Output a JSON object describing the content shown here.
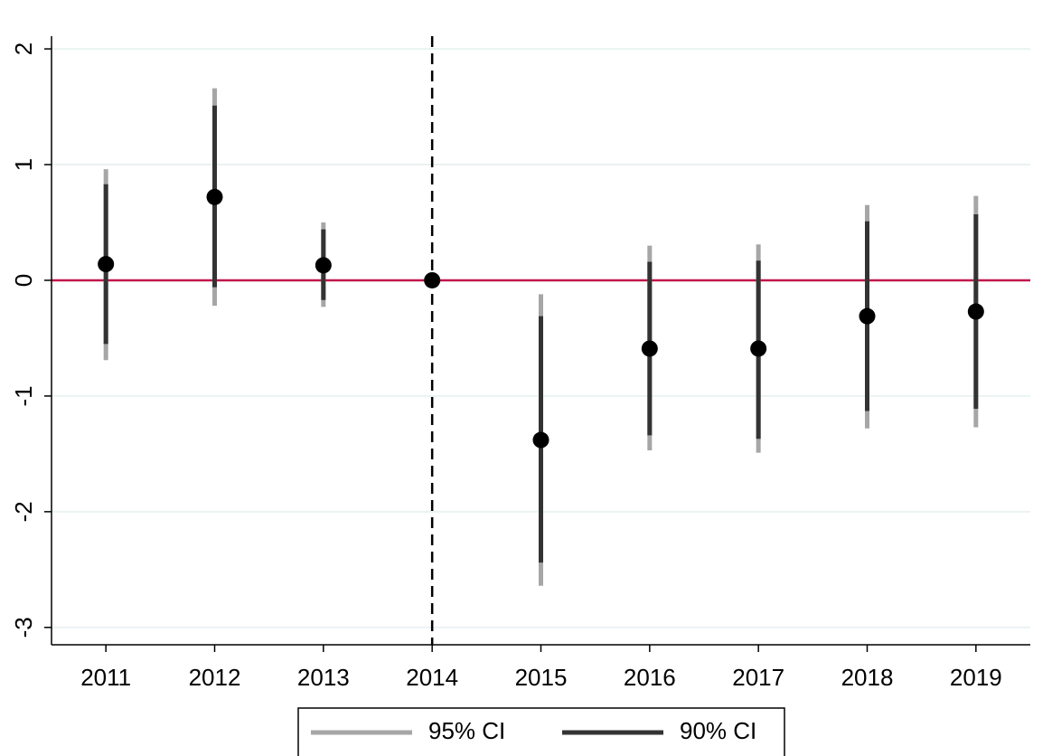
{
  "chart_data": {
    "type": "coefplot",
    "categories": [
      "2011",
      "2012",
      "2013",
      "2014",
      "2015",
      "2016",
      "2017",
      "2018",
      "2019"
    ],
    "values": [
      0.14,
      0.72,
      0.13,
      0,
      -1.38,
      -0.59,
      -0.59,
      -0.31,
      -0.27
    ],
    "point_color": "#000000",
    "series": [
      {
        "name": "95% CI",
        "color": "#a6a6a6",
        "lower": [
          -0.69,
          -0.22,
          -0.23,
          null,
          -2.64,
          -1.47,
          -1.49,
          -1.28,
          -1.27
        ],
        "upper": [
          0.96,
          1.66,
          0.5,
          null,
          -0.12,
          0.3,
          0.31,
          0.65,
          0.73
        ]
      },
      {
        "name": "90% CI",
        "color": "#333333",
        "lower": [
          -0.55,
          -0.06,
          -0.17,
          null,
          -2.44,
          -1.34,
          -1.37,
          -1.13,
          -1.11
        ],
        "upper": [
          0.83,
          1.51,
          0.44,
          null,
          -0.31,
          0.16,
          0.17,
          0.51,
          0.57
        ]
      }
    ],
    "ylim": [
      -3.15,
      2.11
    ],
    "yticks": [
      -3,
      -2,
      -1,
      0,
      1,
      2
    ],
    "grid": true,
    "hline": {
      "value": 0,
      "color": "#c0174a"
    },
    "vline": {
      "category": "2014",
      "style": "dashed"
    },
    "legend": "bottom"
  }
}
